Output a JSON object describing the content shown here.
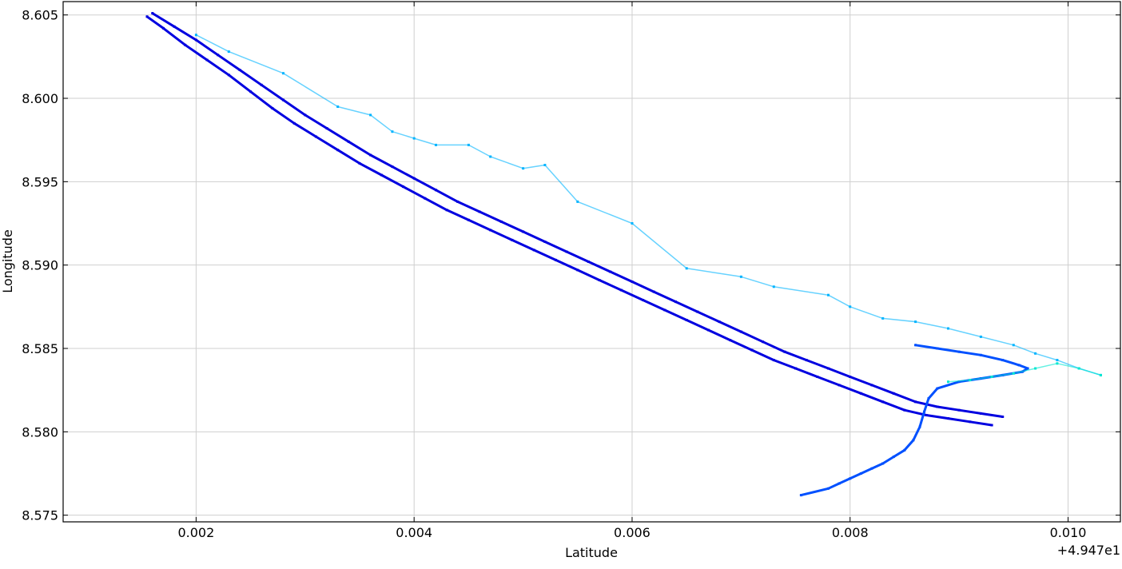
{
  "chart_data": {
    "type": "scatter",
    "title": "",
    "xlabel": "Latitude",
    "ylabel": "Longitude",
    "x_offset_text": "+4.947e1",
    "x_offset_value": 49.47,
    "xlim": [
      0.00078,
      0.01048
    ],
    "ylim": [
      8.5746,
      8.6058
    ],
    "x_ticks": [
      0.002,
      0.004,
      0.006,
      0.008,
      0.01
    ],
    "x_tick_labels": [
      "0.002",
      "0.004",
      "0.006",
      "0.008",
      "0.010"
    ],
    "y_ticks": [
      8.575,
      8.58,
      8.585,
      8.59,
      8.595,
      8.6,
      8.605
    ],
    "y_tick_labels": [
      "8.575",
      "8.580",
      "8.585",
      "8.590",
      "8.595",
      "8.600",
      "8.605"
    ],
    "grid": true,
    "colormap": "jet (low values only: blue to cyan/green)",
    "series": [
      {
        "color": "#0000e0",
        "x": [
          0.00155,
          0.0017,
          0.0019,
          0.0021,
          0.0023,
          0.0025,
          0.0027,
          0.0029,
          0.0031,
          0.0033,
          0.0035,
          0.0037,
          0.0039,
          0.0041,
          0.0043,
          0.0045,
          0.0047,
          0.0049,
          0.0051,
          0.0053,
          0.0055,
          0.0057,
          0.0059,
          0.0061,
          0.0063,
          0.0065,
          0.0067,
          0.0069,
          0.0071,
          0.0073,
          0.0075,
          0.0077,
          0.0079,
          0.0081,
          0.0083,
          0.0085,
          0.0087,
          0.0089,
          0.0091,
          0.0093
        ],
        "y": [
          8.6049,
          8.6042,
          8.6032,
          8.6023,
          8.6014,
          8.6004,
          8.5994,
          8.5985,
          8.5977,
          8.5969,
          8.5961,
          8.5954,
          8.5947,
          8.594,
          8.5933,
          8.5927,
          8.5921,
          8.5915,
          8.5909,
          8.5903,
          8.5897,
          8.5891,
          8.5885,
          8.5879,
          8.5873,
          8.5867,
          8.5861,
          8.5855,
          8.5849,
          8.5843,
          8.5838,
          8.5833,
          8.5828,
          8.5823,
          8.5818,
          8.5813,
          8.581,
          8.5808,
          8.5806,
          8.5804
        ]
      },
      {
        "color": "#0000e0",
        "x": [
          0.0016,
          0.0018,
          0.002,
          0.0022,
          0.0024,
          0.0026,
          0.0028,
          0.003,
          0.0032,
          0.0034,
          0.0036,
          0.0038,
          0.004,
          0.0042,
          0.0044,
          0.0046,
          0.0048,
          0.005,
          0.0052,
          0.0054,
          0.0056,
          0.0058,
          0.006,
          0.0062,
          0.0064,
          0.0066,
          0.0068,
          0.007,
          0.0072,
          0.0074,
          0.0076,
          0.0078,
          0.008,
          0.0082,
          0.0084,
          0.0086,
          0.0088,
          0.009,
          0.0092,
          0.0094
        ],
        "y": [
          8.6051,
          8.6043,
          8.6035,
          8.6026,
          8.6017,
          8.6008,
          8.5999,
          8.599,
          8.5982,
          8.5974,
          8.5966,
          8.5959,
          8.5952,
          8.5945,
          8.5938,
          8.5932,
          8.5926,
          8.592,
          8.5914,
          8.5908,
          8.5902,
          8.5896,
          8.589,
          8.5884,
          8.5878,
          8.5872,
          8.5866,
          8.586,
          8.5854,
          8.5848,
          8.5843,
          8.5838,
          8.5833,
          8.5828,
          8.5823,
          8.5818,
          8.5815,
          8.5813,
          8.5811,
          8.5809
        ]
      },
      {
        "color": "#0050ff",
        "x": [
          0.0086,
          0.0088,
          0.009,
          0.0092,
          0.0094,
          0.00955,
          0.00963,
          0.00958,
          0.0094,
          0.0092,
          0.009,
          0.0088,
          0.00872,
          0.00868,
          0.00864,
          0.00858,
          0.0085,
          0.0084,
          0.0083,
          0.0082,
          0.0081,
          0.008,
          0.0079,
          0.0078,
          0.00755
        ],
        "y": [
          8.5852,
          8.585,
          8.5848,
          8.5846,
          8.5843,
          8.584,
          8.5838,
          8.5836,
          8.5834,
          8.5832,
          8.583,
          8.5826,
          8.582,
          8.5812,
          8.5803,
          8.5795,
          8.5789,
          8.5785,
          8.5781,
          8.5778,
          8.5775,
          8.5772,
          8.5769,
          8.5766,
          8.5762
        ]
      },
      {
        "color": "#00b4ff",
        "x": [
          0.002,
          0.0023,
          0.0028,
          0.0033,
          0.0036,
          0.0038,
          0.004,
          0.0042,
          0.0045,
          0.0047,
          0.005,
          0.0052,
          0.0055,
          0.006,
          0.0065,
          0.007,
          0.0073,
          0.0078,
          0.008,
          0.0083,
          0.0086,
          0.0089,
          0.0092,
          0.0095,
          0.0097,
          0.0099,
          0.0101,
          0.0103
        ],
        "y": [
          8.6038,
          8.6028,
          8.6015,
          8.5995,
          8.599,
          8.598,
          8.5976,
          8.5972,
          8.5972,
          8.5965,
          8.5958,
          8.596,
          8.5938,
          8.5925,
          8.5898,
          8.5893,
          8.5887,
          8.5882,
          8.5875,
          8.5868,
          8.5866,
          8.5862,
          8.5857,
          8.5852,
          8.5847,
          8.5843,
          8.5838,
          8.5834
        ]
      },
      {
        "color": "#00e8d0",
        "x": [
          0.0089,
          0.0091,
          0.0093,
          0.0095,
          0.0097,
          0.0099,
          0.0101,
          0.0103
        ],
        "y": [
          8.583,
          8.5831,
          8.5833,
          8.5835,
          8.5838,
          8.5841,
          8.5838,
          8.5834
        ]
      }
    ]
  }
}
